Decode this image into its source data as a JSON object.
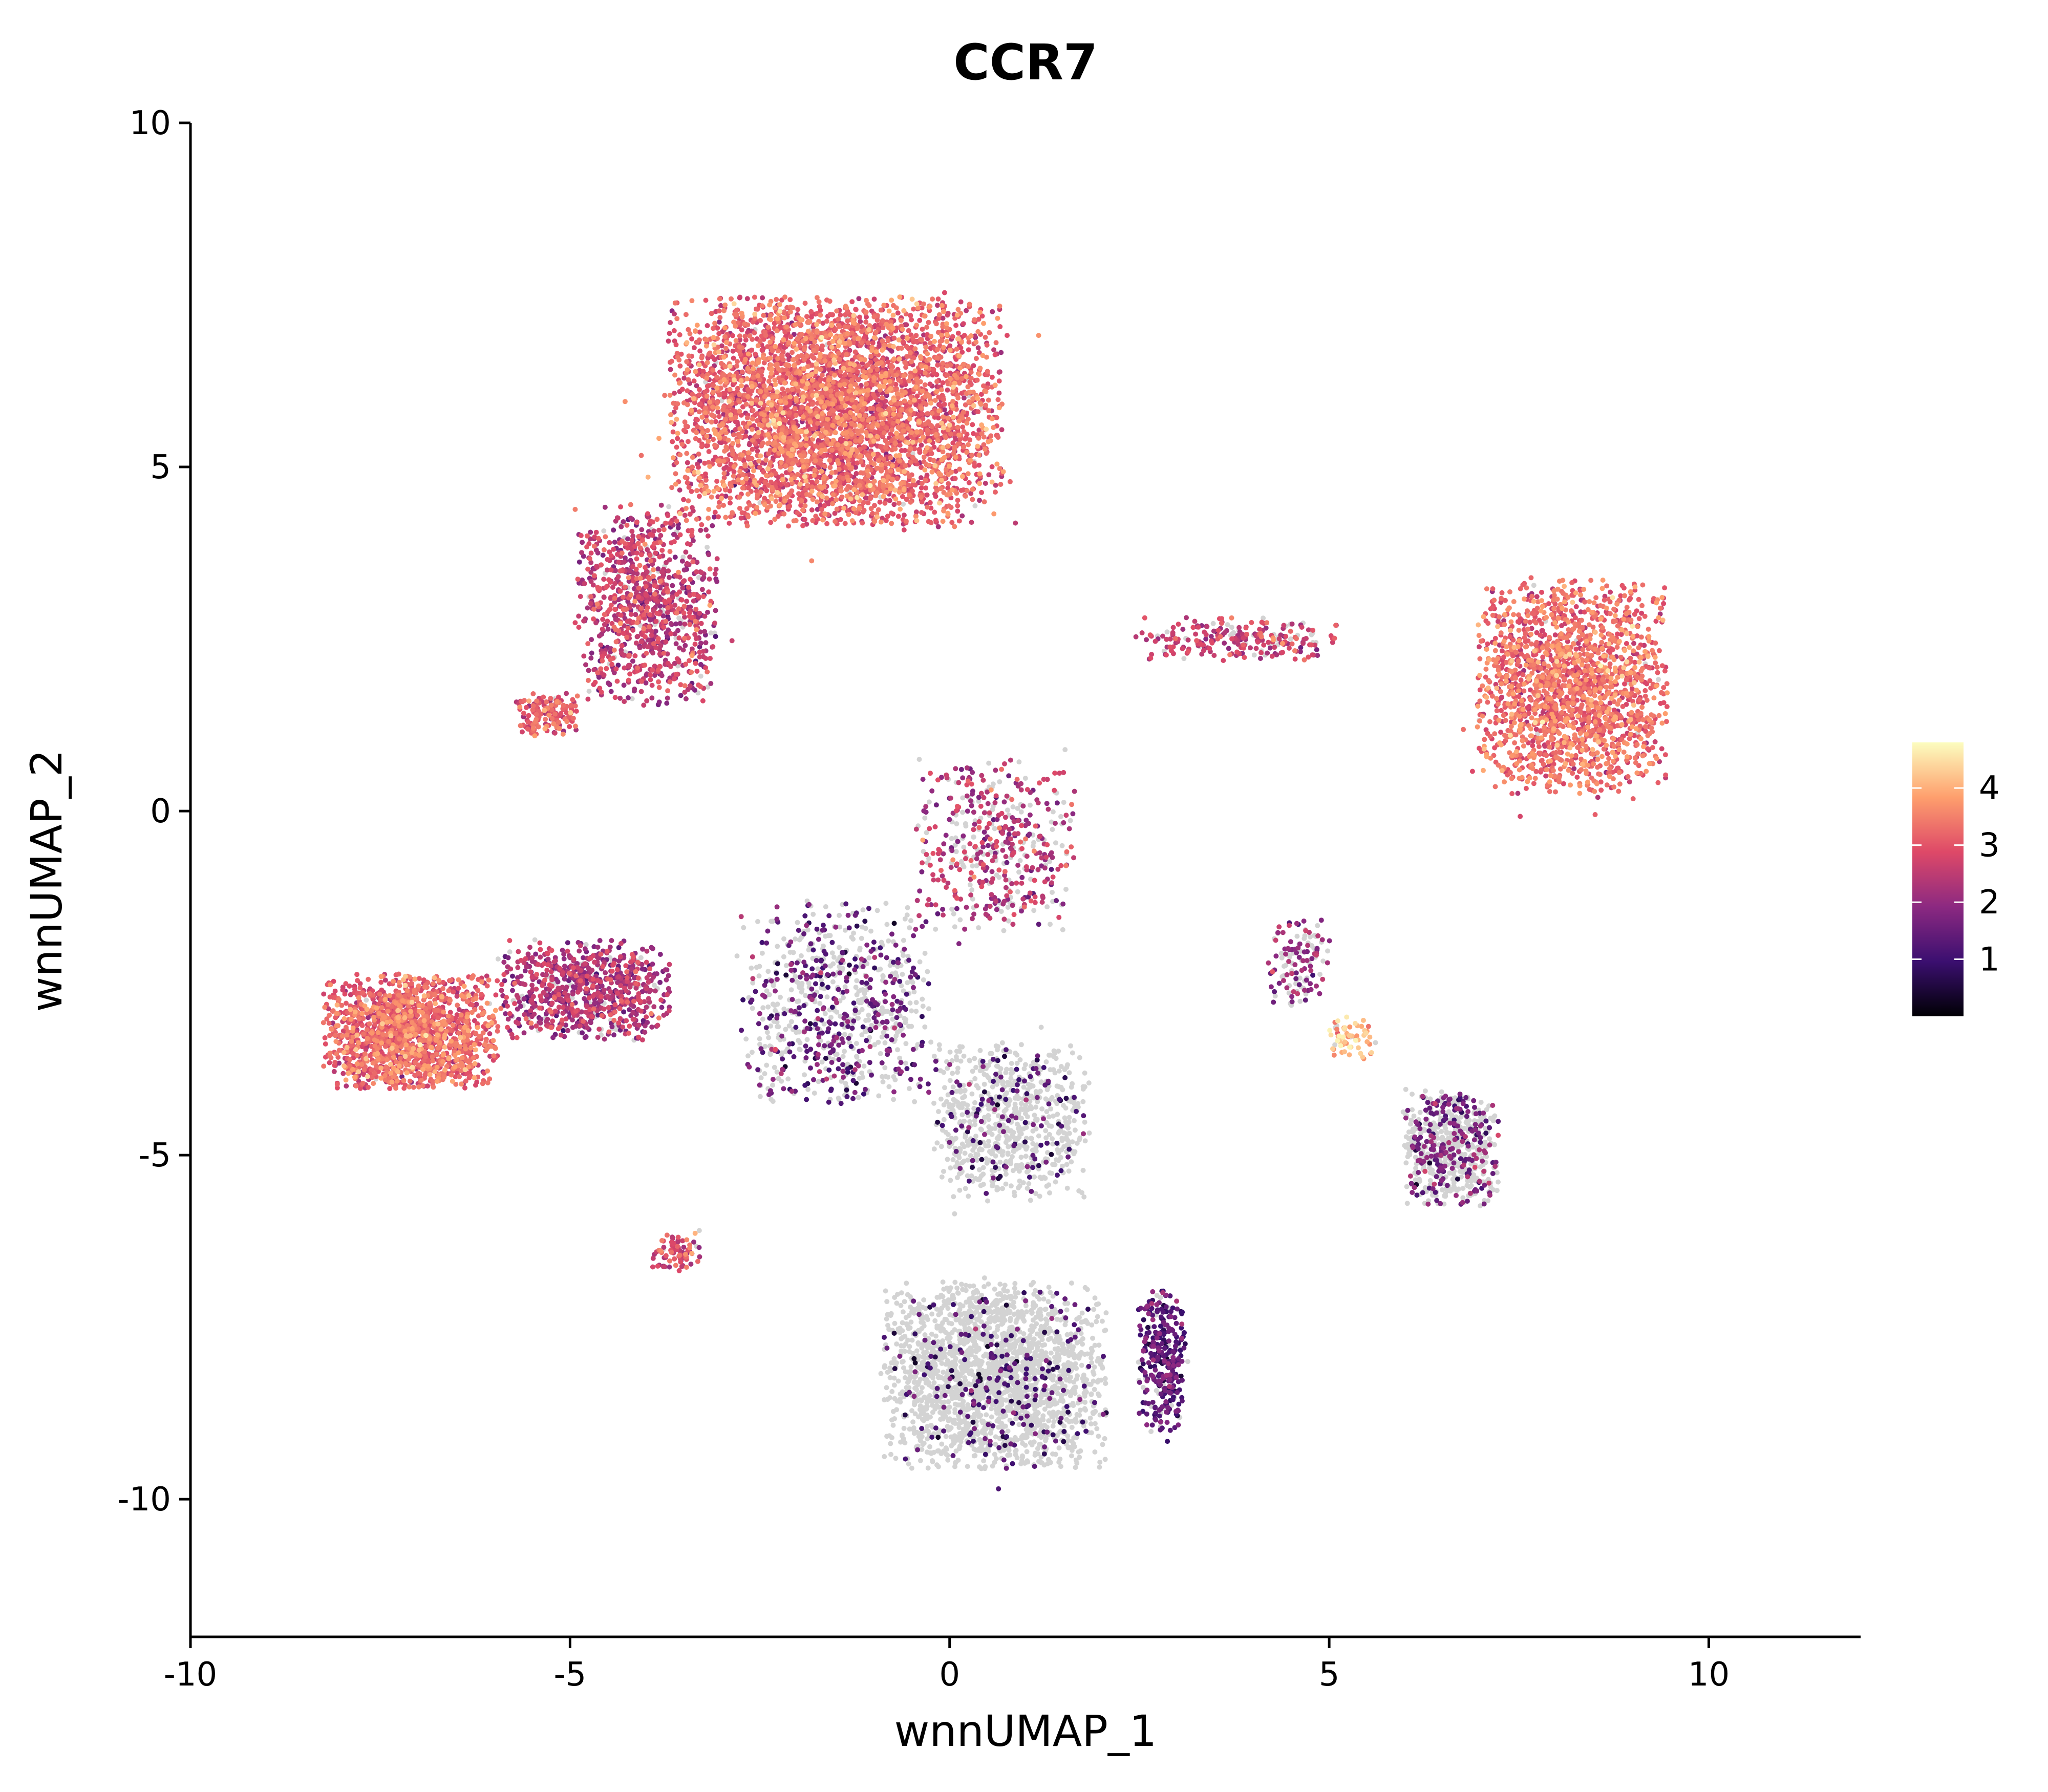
{
  "chart_data": {
    "type": "scatter",
    "title": "CCR7",
    "xlabel": "wnnUMAP_1",
    "ylabel": "wnnUMAP_2",
    "xlim": [
      -10,
      12
    ],
    "ylim": [
      -12,
      10
    ],
    "xticks": [
      -10,
      -5,
      0,
      5,
      10
    ],
    "xtick_labels": [
      "-10",
      "-5",
      "0",
      "5",
      "10"
    ],
    "yticks": [
      -10,
      -5,
      0,
      5,
      10
    ],
    "ytick_labels": [
      "-10",
      "-5",
      "0",
      "5",
      "10"
    ],
    "grid": false,
    "color_scale": {
      "name": "magma",
      "min": 0,
      "max": 4.8,
      "ticks": [
        1,
        2,
        3,
        4
      ],
      "tick_labels": [
        "1",
        "2",
        "3",
        "4"
      ],
      "zero_color": "#d3d3d3",
      "stops": [
        "#000004",
        "#3b0f70",
        "#8c2981",
        "#de4968",
        "#fe9f6d",
        "#fcfdbf"
      ]
    },
    "legend_position": "right",
    "clusters": [
      {
        "center": [
          -1.5,
          5.8
        ],
        "spread": [
          2.1,
          1.6
        ],
        "weight": 0.28,
        "expr_mean": 3.1,
        "expr_prob": 0.99
      },
      {
        "center": [
          -4.0,
          3.0
        ],
        "spread": [
          0.9,
          1.4
        ],
        "weight": 0.06,
        "expr_mean": 2.5,
        "expr_prob": 0.95
      },
      {
        "center": [
          -5.3,
          1.4
        ],
        "spread": [
          0.4,
          0.3
        ],
        "weight": 0.01,
        "expr_mean": 3.0,
        "expr_prob": 0.98
      },
      {
        "center": [
          -7.1,
          -3.2
        ],
        "spread": [
          1.1,
          0.8
        ],
        "weight": 0.1,
        "expr_mean": 3.1,
        "expr_prob": 0.99
      },
      {
        "center": [
          -4.8,
          -2.6
        ],
        "spread": [
          1.1,
          0.7
        ],
        "weight": 0.05,
        "expr_mean": 2.3,
        "expr_prob": 0.9
      },
      {
        "center": [
          8.2,
          1.8
        ],
        "spread": [
          1.2,
          1.5
        ],
        "weight": 0.12,
        "expr_mean": 3.2,
        "expr_prob": 0.99
      },
      {
        "center": [
          -3.6,
          -6.4
        ],
        "spread": [
          0.3,
          0.3
        ],
        "weight": 0.005,
        "expr_mean": 2.8,
        "expr_prob": 0.9
      },
      {
        "center": [
          -1.5,
          -2.8
        ],
        "spread": [
          1.2,
          1.4
        ],
        "weight": 0.05,
        "expr_mean": 1.5,
        "expr_prob": 0.45
      },
      {
        "center": [
          0.6,
          -8.2
        ],
        "spread": [
          1.4,
          1.3
        ],
        "weight": 0.14,
        "expr_mean": 1.2,
        "expr_prob": 0.1
      },
      {
        "center": [
          2.8,
          -8.0
        ],
        "spread": [
          0.3,
          1.0
        ],
        "weight": 0.02,
        "expr_mean": 1.3,
        "expr_prob": 0.85
      },
      {
        "center": [
          0.8,
          -4.5
        ],
        "spread": [
          1.0,
          1.1
        ],
        "weight": 0.05,
        "expr_mean": 1.2,
        "expr_prob": 0.15
      },
      {
        "center": [
          6.6,
          -4.9
        ],
        "spread": [
          0.6,
          0.8
        ],
        "weight": 0.04,
        "expr_mean": 1.6,
        "expr_prob": 0.35
      },
      {
        "center": [
          0.6,
          -0.5
        ],
        "spread": [
          1.0,
          1.2
        ],
        "weight": 0.03,
        "expr_mean": 2.4,
        "expr_prob": 0.7
      },
      {
        "center": [
          3.8,
          2.5
        ],
        "spread": [
          1.3,
          0.3
        ],
        "weight": 0.015,
        "expr_mean": 2.6,
        "expr_prob": 0.8
      },
      {
        "center": [
          5.3,
          -3.3
        ],
        "spread": [
          0.3,
          0.3
        ],
        "weight": 0.004,
        "expr_mean": 4.2,
        "expr_prob": 0.9
      },
      {
        "center": [
          4.6,
          -2.2
        ],
        "spread": [
          0.4,
          0.6
        ],
        "weight": 0.008,
        "expr_mean": 2.0,
        "expr_prob": 0.6
      }
    ]
  }
}
